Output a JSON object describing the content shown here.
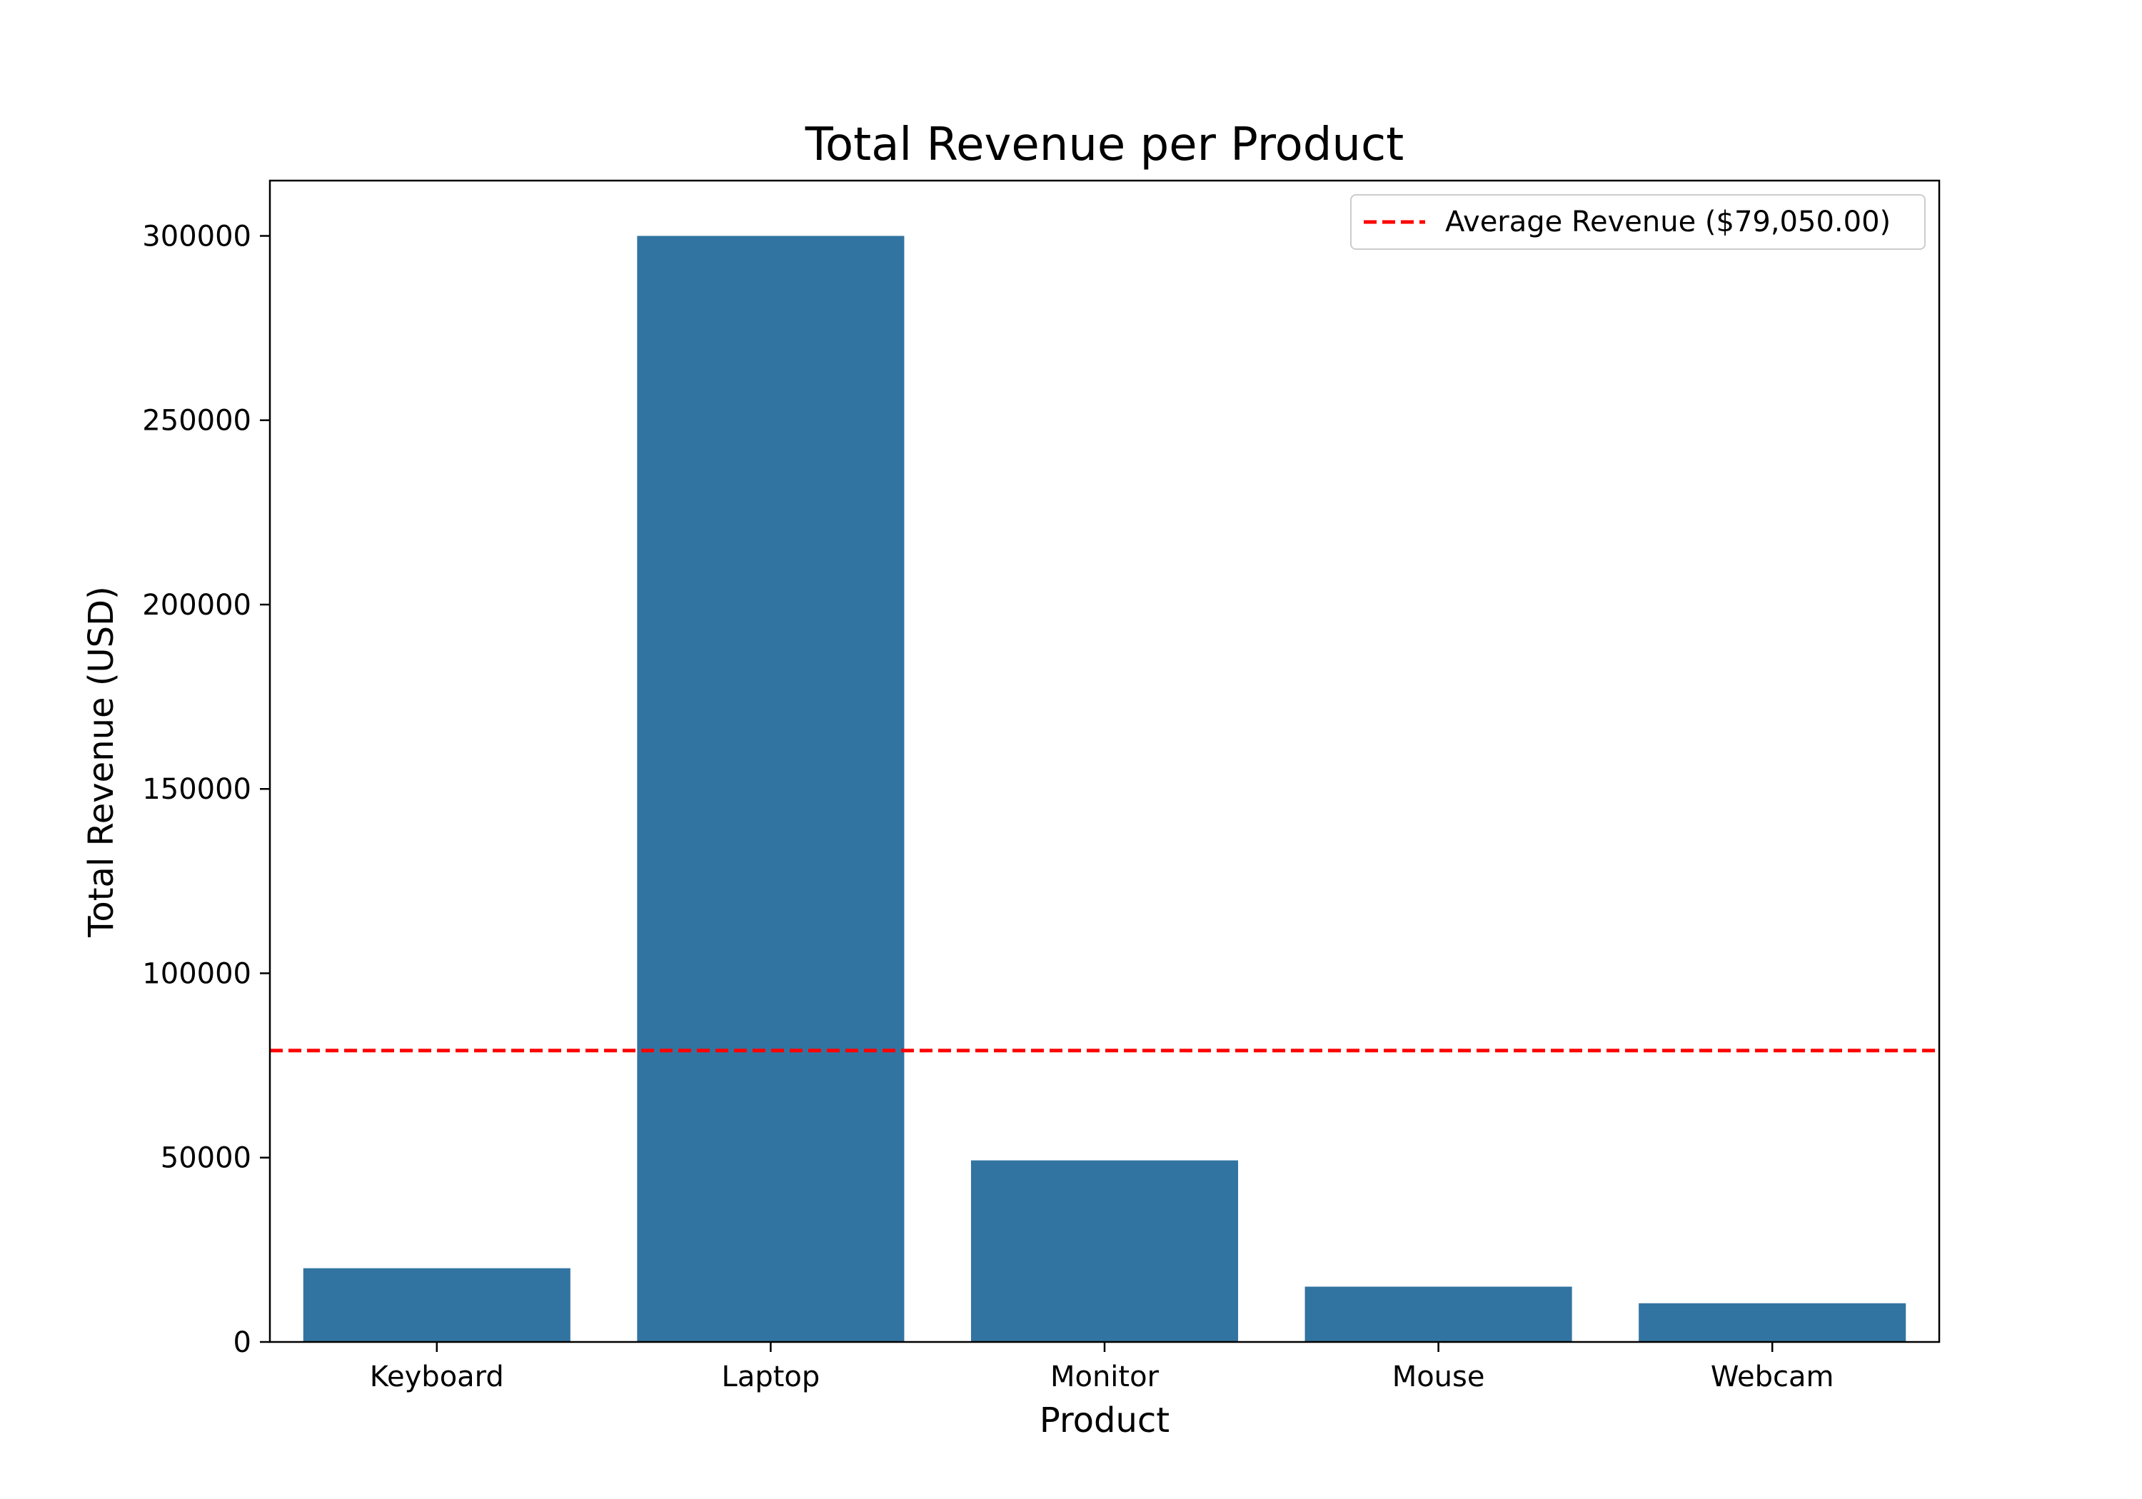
{
  "chart_data": {
    "type": "bar",
    "title": "Total Revenue per Product",
    "xlabel": "Product",
    "ylabel": "Total Revenue (USD)",
    "categories": [
      "Keyboard",
      "Laptop",
      "Monitor",
      "Mouse",
      "Webcam"
    ],
    "values": [
      20000,
      300000,
      49250,
      15000,
      10500
    ],
    "ylim": [
      0,
      315000
    ],
    "yticks": [
      0,
      50000,
      100000,
      150000,
      200000,
      250000,
      300000
    ],
    "bar_color": "#3274a1",
    "reference_line": {
      "value": 79050,
      "label": "Average Revenue ($79,050.00)",
      "color": "#ff0000",
      "style": "dashed"
    },
    "legend_position": "top-right",
    "grid": false
  }
}
